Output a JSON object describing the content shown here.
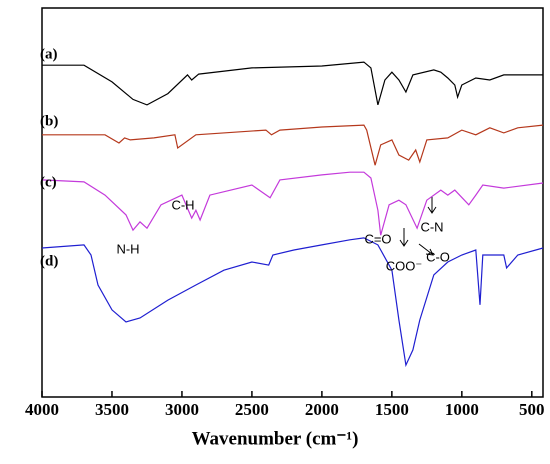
{
  "chart_data": {
    "type": "line",
    "xlabel": "Wavenumber (cm⁻¹)",
    "xlim": [
      4000,
      420
    ],
    "xticks": [
      4000,
      3500,
      3000,
      2500,
      2000,
      1500,
      1000,
      500
    ],
    "ylim": [
      0,
      100
    ],
    "series": [
      {
        "name": "(a)",
        "color": "#000000",
        "x": [
          4000,
          3700,
          3500,
          3350,
          3250,
          3100,
          2960,
          2930,
          2880,
          2500,
          2000,
          1700,
          1650,
          1600,
          1550,
          1500,
          1450,
          1400,
          1350,
          1200,
          1150,
          1100,
          1050,
          1030,
          1000,
          900,
          800,
          700,
          600,
          420
        ],
        "values": [
          85.3,
          85.3,
          81.0,
          76.5,
          75.1,
          78.0,
          82.8,
          81.5,
          83.0,
          84.6,
          85.1,
          86.1,
          84.6,
          75.1,
          81.5,
          83.5,
          81.5,
          78.4,
          82.8,
          84.1,
          83.5,
          82.0,
          80.2,
          77.1,
          80.2,
          82.0,
          81.5,
          82.8,
          82.8,
          82.8
        ]
      },
      {
        "name": "(b)",
        "color": "#b5381c",
        "x": [
          4000,
          3550,
          3450,
          3410,
          3370,
          3200,
          3050,
          3030,
          2900,
          2400,
          2360,
          2300,
          2000,
          1700,
          1680,
          1620,
          1580,
          1500,
          1450,
          1380,
          1330,
          1300,
          1250,
          1100,
          1000,
          900,
          800,
          700,
          600,
          420
        ],
        "values": [
          67.4,
          67.4,
          65.3,
          66.6,
          66.1,
          66.6,
          67.4,
          64.0,
          67.4,
          68.6,
          67.4,
          68.6,
          69.4,
          69.9,
          68.6,
          59.6,
          64.8,
          66.1,
          62.2,
          60.9,
          63.5,
          60.4,
          66.1,
          66.6,
          68.6,
          67.4,
          69.2,
          67.9,
          69.2,
          69.9
        ]
      },
      {
        "name": "(c)",
        "color": "#c43adb",
        "x": [
          4000,
          3700,
          3550,
          3400,
          3350,
          3300,
          3250,
          3150,
          3000,
          2930,
          2900,
          2870,
          2800,
          2500,
          2370,
          2300,
          2000,
          1800,
          1700,
          1650,
          1600,
          1580,
          1520,
          1450,
          1400,
          1320,
          1250,
          1150,
          1100,
          1050,
          950,
          900,
          850,
          700,
          420
        ],
        "values": [
          55.8,
          55.3,
          51.9,
          46.8,
          42.9,
          45.0,
          43.4,
          49.4,
          51.9,
          46.0,
          48.0,
          45.5,
          51.9,
          54.5,
          51.2,
          55.8,
          57.1,
          57.8,
          57.8,
          56.3,
          48.0,
          41.6,
          49.4,
          50.6,
          49.4,
          43.4,
          50.6,
          53.2,
          51.9,
          53.2,
          49.4,
          51.9,
          54.5,
          53.7,
          55.0
        ]
      },
      {
        "name": "(d)",
        "color": "#1f1fd1",
        "x": [
          4000,
          3700,
          3650,
          3600,
          3500,
          3400,
          3300,
          3100,
          2900,
          2700,
          2500,
          2380,
          2350,
          2200,
          2000,
          1800,
          1700,
          1600,
          1500,
          1450,
          1400,
          1350,
          1300,
          1200,
          1100,
          1000,
          900,
          870,
          850,
          700,
          680,
          600,
          420
        ],
        "values": [
          38.3,
          39.1,
          36.5,
          28.8,
          22.4,
          19.3,
          20.3,
          24.9,
          28.8,
          32.6,
          34.7,
          33.9,
          36.5,
          37.8,
          39.1,
          40.4,
          40.9,
          39.1,
          32.6,
          19.8,
          8.2,
          12.1,
          19.8,
          31.4,
          34.7,
          36.5,
          37.8,
          23.7,
          36.5,
          36.5,
          33.2,
          36.5,
          38.3
        ]
      }
    ],
    "annotations": [
      "N-H",
      "C-H",
      "C=O",
      "COO⁻",
      "C-N",
      "C-O"
    ]
  }
}
